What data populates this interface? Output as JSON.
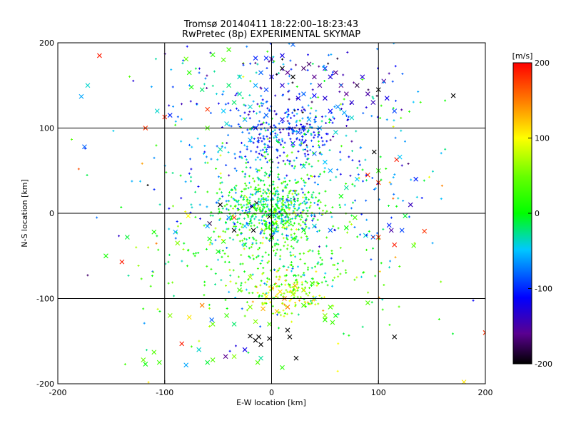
{
  "chart_data": {
    "type": "scatter",
    "title": "Tromsø 20140411 18:22:00–18:23:43",
    "subtitle": "RwPretec (8p) EXPERIMENTAL SKYMAP",
    "xlabel": "E-W location [km]",
    "ylabel": "N-S location [km]",
    "xlim": [
      -200,
      200
    ],
    "ylim": [
      -200,
      200
    ],
    "xticks": [
      "-200",
      "-100",
      "0",
      "100",
      "200"
    ],
    "yticks": [
      "-200",
      "-100",
      "0",
      "100",
      "200"
    ],
    "grid": true,
    "colorbar": {
      "label": "[m/s]",
      "range": [
        -200,
        200
      ],
      "ticks": [
        "200",
        "100",
        "0",
        "-100",
        "-200"
      ],
      "colormap": "black-purple-blue-cyan-green-yellow-red"
    },
    "markers": {
      "small": "plus",
      "large": "x"
    },
    "points": [
      [
        -161,
        185,
        190,
        "x"
      ],
      [
        -178,
        137,
        -60,
        "x"
      ],
      [
        -172,
        150,
        -40,
        "x"
      ],
      [
        -107,
        120,
        -40,
        "x"
      ],
      [
        -95,
        115,
        -100,
        "x"
      ],
      [
        -100,
        113,
        190,
        "x"
      ],
      [
        -60,
        122,
        180,
        "x"
      ],
      [
        -118,
        100,
        180,
        "x"
      ],
      [
        -175,
        78,
        -80,
        "x"
      ],
      [
        -135,
        -28,
        -10,
        "x"
      ],
      [
        -110,
        -22,
        10,
        "x"
      ],
      [
        -155,
        -50,
        10,
        "x"
      ],
      [
        -90,
        -22,
        -60,
        "x"
      ],
      [
        -88,
        -35,
        60,
        "x"
      ],
      [
        -140,
        -57,
        190,
        "x"
      ],
      [
        -78,
        -3,
        100,
        "x"
      ],
      [
        -58,
        -12,
        -180,
        "x"
      ],
      [
        -65,
        -108,
        150,
        "x"
      ],
      [
        -77,
        -122,
        110,
        "x"
      ],
      [
        -95,
        -120,
        60,
        "x"
      ],
      [
        -84,
        -153,
        190,
        "x"
      ],
      [
        -56,
        -125,
        -80,
        "x"
      ],
      [
        -80,
        -178,
        -60,
        "x"
      ],
      [
        -68,
        -160,
        -40,
        "x"
      ],
      [
        -43,
        -168,
        -160,
        "x"
      ],
      [
        -25,
        -160,
        -120,
        "x"
      ],
      [
        -20,
        -144,
        -200,
        "x"
      ],
      [
        -15,
        -149,
        -200,
        "x"
      ],
      [
        -12,
        -145,
        -200,
        "x"
      ],
      [
        -10,
        -154,
        -200,
        "x"
      ],
      [
        -2,
        -147,
        -200,
        "x"
      ],
      [
        15,
        -137,
        -200,
        "x"
      ],
      [
        17,
        -145,
        -200,
        "x"
      ],
      [
        23,
        -170,
        -200,
        "x"
      ],
      [
        115,
        -145,
        -200,
        "x"
      ],
      [
        -13,
        -175,
        40,
        "x"
      ],
      [
        10,
        -181,
        20,
        "x"
      ],
      [
        -42,
        -120,
        30,
        "x"
      ],
      [
        -55,
        -130,
        50,
        "x"
      ],
      [
        50,
        -120,
        60,
        "x"
      ],
      [
        57,
        -128,
        30,
        "x"
      ],
      [
        90,
        -105,
        40,
        "x"
      ],
      [
        -30,
        -90,
        30,
        "x"
      ],
      [
        -20,
        -75,
        70,
        "x"
      ],
      [
        -50,
        -45,
        10,
        "x"
      ],
      [
        -58,
        -30,
        0,
        "x"
      ],
      [
        -25,
        -37,
        -30,
        "x"
      ],
      [
        -45,
        -33,
        20,
        "x"
      ],
      [
        -60,
        -15,
        -60,
        "x"
      ],
      [
        -35,
        -20,
        -200,
        "x"
      ],
      [
        -40,
        -5,
        -60,
        "x"
      ],
      [
        -25,
        -15,
        -50,
        "x"
      ],
      [
        -17,
        -20,
        -200,
        "x"
      ],
      [
        -14,
        12,
        -200,
        "x"
      ],
      [
        -18,
        8,
        -200,
        "x"
      ],
      [
        -48,
        10,
        -200,
        "x"
      ],
      [
        -35,
        -5,
        180,
        "x"
      ],
      [
        0,
        -28,
        -200,
        "x"
      ],
      [
        -2,
        -4,
        -200,
        "x"
      ],
      [
        95,
        -28,
        -80,
        "x"
      ],
      [
        88,
        -26,
        -40,
        "x"
      ],
      [
        110,
        -14,
        -100,
        "x"
      ],
      [
        112,
        -20,
        -150,
        "x"
      ],
      [
        122,
        -20,
        -90,
        "x"
      ],
      [
        143,
        -21,
        180,
        "x"
      ],
      [
        133,
        -38,
        40,
        "x"
      ],
      [
        100,
        -28,
        180,
        "x"
      ],
      [
        115,
        -37,
        190,
        "x"
      ],
      [
        55,
        -20,
        -80,
        "x"
      ],
      [
        40,
        -15,
        -40,
        "x"
      ],
      [
        30,
        -20,
        0,
        "x"
      ],
      [
        20,
        -30,
        20,
        "x"
      ],
      [
        15,
        -10,
        40,
        "x"
      ],
      [
        90,
        45,
        180,
        "x"
      ],
      [
        100,
        36,
        180,
        "x"
      ],
      [
        117,
        63,
        190,
        "x"
      ],
      [
        135,
        40,
        -100,
        "x"
      ],
      [
        130,
        10,
        -140,
        "x"
      ],
      [
        120,
        66,
        -50,
        "x"
      ],
      [
        96,
        72,
        -200,
        "x"
      ],
      [
        100,
        50,
        20,
        "x"
      ],
      [
        80,
        40,
        -50,
        "x"
      ],
      [
        70,
        30,
        -30,
        "x"
      ],
      [
        65,
        20,
        0,
        "x"
      ],
      [
        55,
        50,
        -60,
        "x"
      ],
      [
        50,
        60,
        -50,
        "x"
      ],
      [
        40,
        70,
        -80,
        "x"
      ],
      [
        30,
        55,
        -40,
        "x"
      ],
      [
        78,
        -5,
        30,
        "x"
      ],
      [
        70,
        -17,
        0,
        "x"
      ],
      [
        30,
        100,
        -100,
        "x"
      ],
      [
        20,
        82,
        -110,
        "x"
      ],
      [
        25,
        95,
        -90,
        "x"
      ],
      [
        35,
        110,
        -60,
        "x"
      ],
      [
        45,
        100,
        -60,
        "x"
      ],
      [
        60,
        95,
        -40,
        "x"
      ],
      [
        10,
        110,
        -120,
        "x"
      ],
      [
        -5,
        115,
        -80,
        "x"
      ],
      [
        -15,
        100,
        -100,
        "x"
      ],
      [
        -25,
        110,
        -60,
        "x"
      ],
      [
        -20,
        125,
        -40,
        "x"
      ],
      [
        -30,
        140,
        -30,
        "x"
      ],
      [
        -35,
        130,
        -20,
        "x"
      ],
      [
        -40,
        150,
        -20,
        "x"
      ],
      [
        -30,
        160,
        -40,
        "x"
      ],
      [
        -15,
        150,
        -60,
        "x"
      ],
      [
        -10,
        165,
        -80,
        "x"
      ],
      [
        -5,
        145,
        -90,
        "x"
      ],
      [
        0,
        160,
        -120,
        "x"
      ],
      [
        10,
        150,
        -130,
        "x"
      ],
      [
        15,
        165,
        -160,
        "x"
      ],
      [
        20,
        160,
        -200,
        "x"
      ],
      [
        10,
        170,
        -200,
        "x"
      ],
      [
        30,
        170,
        -170,
        "x"
      ],
      [
        35,
        175,
        -170,
        "x"
      ],
      [
        40,
        160,
        -160,
        "x"
      ],
      [
        45,
        150,
        -150,
        "x"
      ],
      [
        50,
        170,
        -120,
        "x"
      ],
      [
        55,
        160,
        -130,
        "x"
      ],
      [
        60,
        165,
        -160,
        "x"
      ],
      [
        65,
        150,
        -160,
        "x"
      ],
      [
        70,
        140,
        -160,
        "x"
      ],
      [
        75,
        130,
        -130,
        "x"
      ],
      [
        80,
        150,
        -180,
        "x"
      ],
      [
        85,
        160,
        -130,
        "x"
      ],
      [
        90,
        140,
        -150,
        "x"
      ],
      [
        95,
        130,
        -140,
        "x"
      ],
      [
        100,
        145,
        -200,
        "x"
      ],
      [
        105,
        155,
        -150,
        "x"
      ],
      [
        108,
        135,
        -120,
        "x"
      ],
      [
        115,
        120,
        -90,
        "x"
      ],
      [
        25,
        135,
        -120,
        "x"
      ],
      [
        30,
        140,
        -80,
        "x"
      ],
      [
        40,
        138,
        -110,
        "x"
      ],
      [
        50,
        135,
        -130,
        "x"
      ],
      [
        55,
        120,
        -110,
        "x"
      ],
      [
        62,
        125,
        -70,
        "x"
      ],
      [
        68,
        118,
        -60,
        "x"
      ],
      [
        75,
        112,
        -40,
        "x"
      ],
      [
        170,
        138,
        -200,
        "x"
      ],
      [
        0,
        181,
        -140,
        "x"
      ],
      [
        -5,
        182,
        -100,
        "x"
      ],
      [
        -15,
        182,
        -100,
        "x"
      ],
      [
        10,
        185,
        -120,
        "x"
      ],
      [
        20,
        198,
        -80,
        "x"
      ],
      [
        -40,
        192,
        30,
        "x"
      ],
      [
        -45,
        180,
        40,
        "x"
      ],
      [
        -55,
        186,
        20,
        "x"
      ],
      [
        -80,
        181,
        50,
        "x"
      ],
      [
        -77,
        165,
        20,
        "x"
      ],
      [
        -75,
        148,
        10,
        "x"
      ],
      [
        -65,
        145,
        -20,
        "x"
      ],
      [
        -60,
        100,
        40,
        "x"
      ],
      [
        -42,
        105,
        -40,
        "x"
      ],
      [
        -45,
        120,
        -50,
        "x"
      ],
      [
        -48,
        75,
        -30,
        "x"
      ],
      [
        -20,
        86,
        -60,
        "x"
      ],
      [
        -110,
        -163,
        40,
        "x"
      ],
      [
        -105,
        -175,
        30,
        "x"
      ],
      [
        -118,
        -177,
        0,
        "x"
      ],
      [
        -120,
        -172,
        50,
        "x"
      ],
      [
        -60,
        -175,
        -10,
        "x"
      ],
      [
        -55,
        -172,
        40,
        "x"
      ],
      [
        -35,
        -130,
        -20,
        "x"
      ],
      [
        -35,
        -168,
        60,
        "x"
      ],
      [
        -10,
        -170,
        -30,
        "x"
      ],
      [
        55,
        -110,
        40,
        "x"
      ],
      [
        50,
        -125,
        20,
        "x"
      ],
      [
        60,
        -120,
        0,
        "x"
      ],
      [
        40,
        -100,
        -40,
        "x"
      ],
      [
        30,
        -90,
        60,
        "x"
      ],
      [
        20,
        -95,
        90,
        "x"
      ],
      [
        15,
        -110,
        150,
        "x"
      ],
      [
        12,
        -100,
        160,
        "x"
      ],
      [
        22,
        -85,
        140,
        "x"
      ],
      [
        8,
        -92,
        110,
        "x"
      ],
      [
        0,
        -88,
        90,
        "x"
      ],
      [
        -5,
        -98,
        100,
        "x"
      ],
      [
        -8,
        -112,
        130,
        "x"
      ],
      [
        5,
        -115,
        120,
        "x"
      ],
      [
        -2,
        -130,
        40,
        "x"
      ],
      [
        -15,
        -127,
        60,
        "x"
      ],
      [
        -20,
        -110,
        60,
        "x"
      ],
      [
        30,
        -108,
        30,
        "x"
      ],
      [
        38,
        -82,
        30,
        "x"
      ],
      [
        180,
        -198,
        110,
        "x"
      ],
      [
        200,
        -140,
        180,
        "x"
      ],
      [
        125,
        -3,
        -10,
        "x"
      ]
    ]
  }
}
